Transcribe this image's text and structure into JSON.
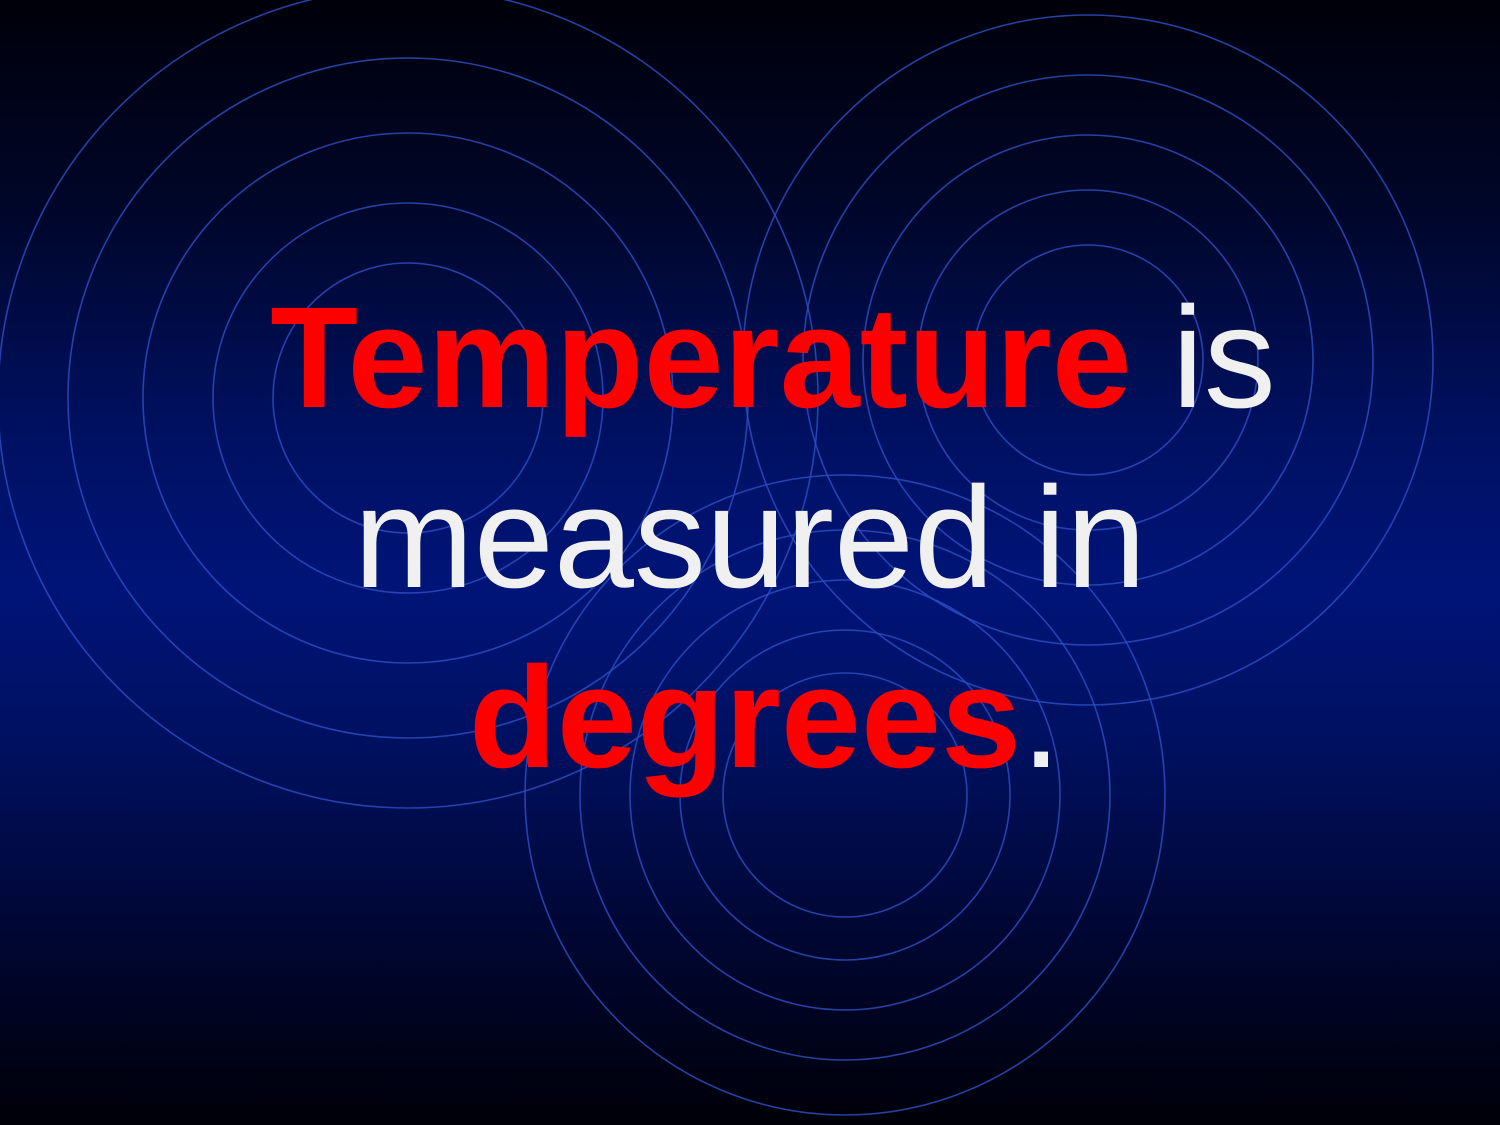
{
  "slide": {
    "keyword_1": "Temperature",
    "text_1": " is",
    "text_2": "measured in",
    "keyword_2": "degrees",
    "text_3": "."
  },
  "colors": {
    "keyword": "#ff0000",
    "body_text": "#f0f0f0",
    "ring_stroke": "#2a4cc0",
    "background_center": "#001478",
    "background_edge": "#000008"
  }
}
